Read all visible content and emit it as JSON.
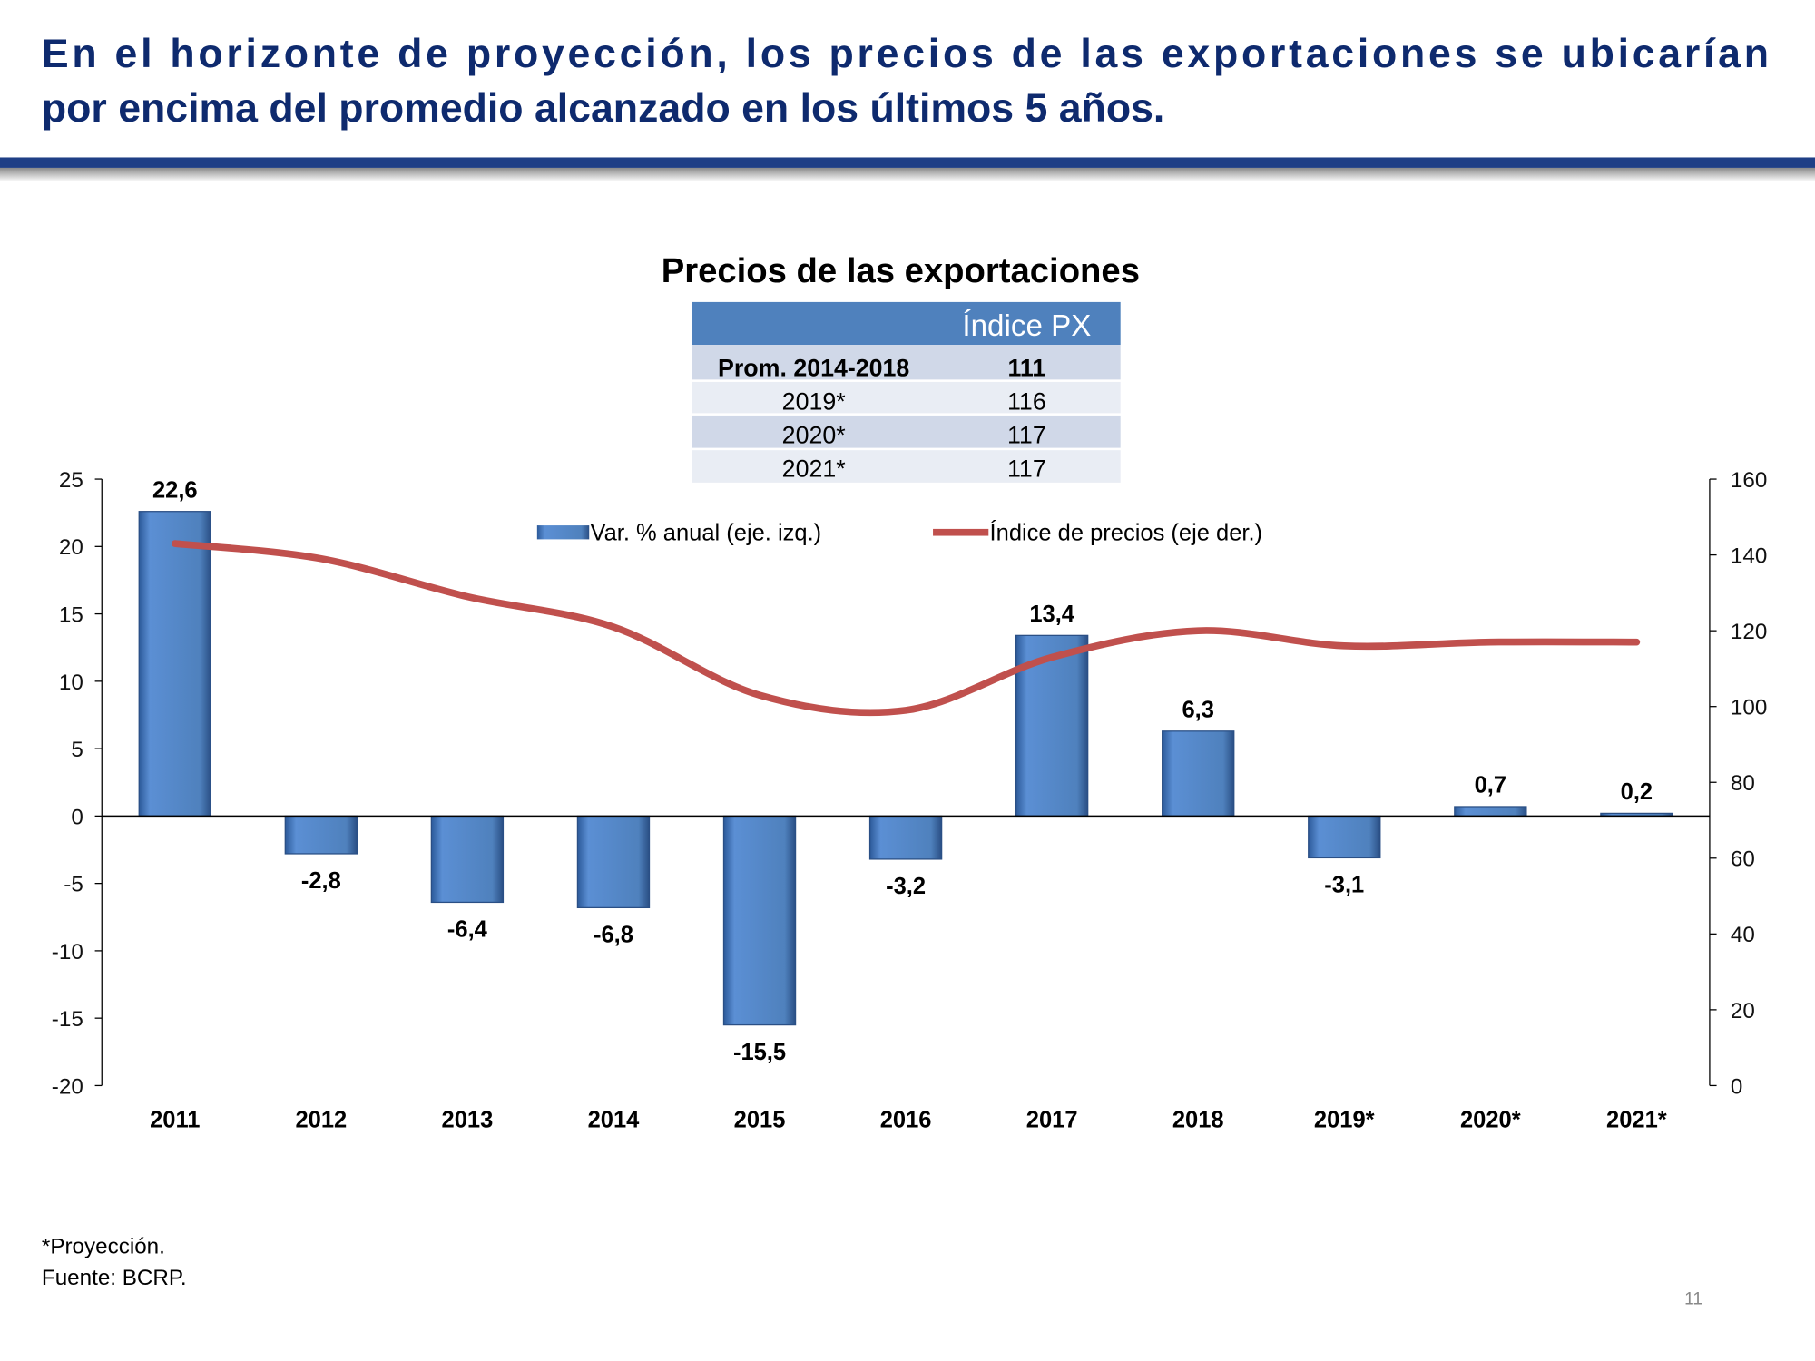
{
  "slide": {
    "title_line1": "En el horizonte de proyección, los precios de las exportaciones se ubicarían",
    "title_line2": "por encima del promedio alcanzado en los últimos 5 años.",
    "footnote": "*Proyección.",
    "source": "Fuente: BCRP.",
    "page_number": "11"
  },
  "table": {
    "header": "Índice PX",
    "rows": [
      {
        "label": "Prom. 2014-2018",
        "value": "111"
      },
      {
        "label": "2019*",
        "value": "116"
      },
      {
        "label": "2020*",
        "value": "117"
      },
      {
        "label": "2021*",
        "value": "117"
      }
    ]
  },
  "chart_data": {
    "type": "bar",
    "title": "Precios de las exportaciones",
    "categories": [
      "2011",
      "2012",
      "2013",
      "2014",
      "2015",
      "2016",
      "2017",
      "2018",
      "2019*",
      "2020*",
      "2021*"
    ],
    "series": [
      {
        "name": "Var. % anual (eje. izq.)",
        "type": "bar",
        "axis": "left",
        "color": "#4f81bd",
        "values": [
          22.6,
          -2.8,
          -6.4,
          -6.8,
          -15.5,
          -3.2,
          13.4,
          6.3,
          -3.1,
          0.7,
          0.2
        ],
        "labels": [
          "22,6",
          "-2,8",
          "-6,4",
          "-6,8",
          "-15,5",
          "-3,2",
          "13,4",
          "6,3",
          "-3,1",
          "0,7",
          "0,2"
        ]
      },
      {
        "name": "Índice de precios (eje der.)",
        "type": "line",
        "axis": "right",
        "color": "#c0504d",
        "values": [
          143,
          139,
          129,
          121,
          103,
          99,
          113,
          120,
          116,
          117,
          117
        ]
      }
    ],
    "y_left": {
      "range": [
        -20,
        25
      ],
      "ticks": [
        "25",
        "20",
        "15",
        "10",
        "5",
        "0",
        "-5",
        "-10",
        "-15",
        "-20"
      ]
    },
    "y_right": {
      "range": [
        0,
        160
      ],
      "ticks": [
        "160",
        "140",
        "120",
        "100",
        "80",
        "60",
        "40",
        "20",
        "0"
      ]
    },
    "legend": "top-center",
    "grid": false
  }
}
